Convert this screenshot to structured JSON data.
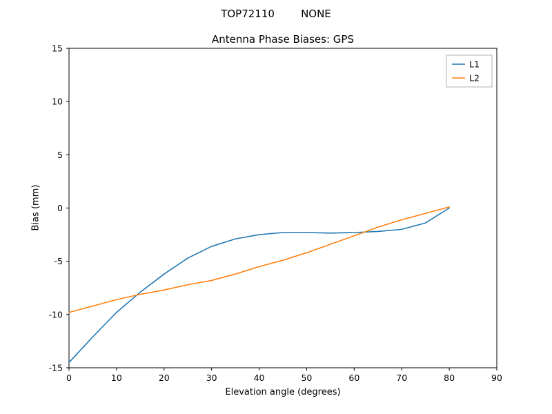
{
  "header": {
    "title": "TOP72110        NONE"
  },
  "chart_data": {
    "type": "line",
    "title": "Antenna Phase Biases: GPS",
    "xlabel": "Elevation angle (degrees)",
    "ylabel": "Bias (mm)",
    "xlim": [
      0,
      90
    ],
    "ylim": [
      -15,
      15
    ],
    "xticks": [
      0,
      10,
      20,
      30,
      40,
      50,
      60,
      70,
      80,
      90
    ],
    "yticks": [
      -15,
      -10,
      -5,
      0,
      5,
      10,
      15
    ],
    "grid": false,
    "legend_position": "upper right",
    "x": [
      0,
      5,
      10,
      15,
      20,
      25,
      30,
      35,
      40,
      45,
      50,
      55,
      60,
      65,
      70,
      75,
      80
    ],
    "series": [
      {
        "name": "L1",
        "color": "#1f77b4",
        "values": [
          -14.5,
          -12.1,
          -9.8,
          -7.9,
          -6.2,
          -4.7,
          -3.6,
          -2.9,
          -2.5,
          -2.3,
          -2.3,
          -2.35,
          -2.3,
          -2.2,
          -2.0,
          -1.4,
          0.0
        ]
      },
      {
        "name": "L2",
        "color": "#ff7f0e",
        "values": [
          -9.8,
          -9.2,
          -8.6,
          -8.1,
          -7.7,
          -7.2,
          -6.8,
          -6.2,
          -5.5,
          -4.9,
          -4.2,
          -3.4,
          -2.6,
          -1.8,
          -1.1,
          -0.5,
          0.1
        ]
      }
    ]
  }
}
